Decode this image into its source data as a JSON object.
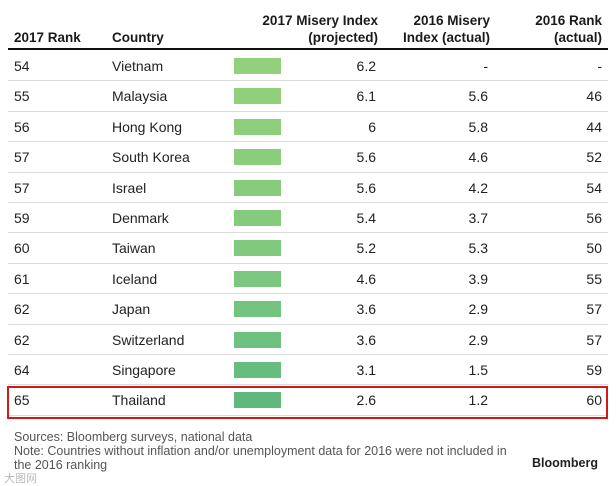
{
  "header": {
    "rank_2017": "2017 Rank",
    "country": "Country",
    "index_2017_line1": "2017 Misery Index",
    "index_2017_line2": "(projected)",
    "index_2016_line1": "2016 Misery",
    "index_2016_line2": "Index (actual)",
    "rank_2016_line1": "2016 Rank",
    "rank_2016_line2": "(actual)"
  },
  "colors": {
    "bar_light": "#8fce7a",
    "bar_dark": "#5cb86c",
    "highlight": "#d11b1b"
  },
  "rows": [
    {
      "rank": "54",
      "country": "Vietnam",
      "index_2017": "6.2",
      "index_2016": "-",
      "rank_2016": "-",
      "bar_color": "#93d07c"
    },
    {
      "rank": "55",
      "country": "Malaysia",
      "index_2017": "6.1",
      "index_2016": "5.6",
      "rank_2016": "46",
      "bar_color": "#90cf7c"
    },
    {
      "rank": "56",
      "country": "Hong Kong",
      "index_2017": "6",
      "index_2016": "5.8",
      "rank_2016": "44",
      "bar_color": "#8dce7c"
    },
    {
      "rank": "57",
      "country": "South Korea",
      "index_2017": "5.6",
      "index_2016": "4.6",
      "rank_2016": "52",
      "bar_color": "#8acd7d"
    },
    {
      "rank": "57",
      "country": "Israel",
      "index_2017": "5.6",
      "index_2016": "4.2",
      "rank_2016": "54",
      "bar_color": "#87cc7d"
    },
    {
      "rank": "59",
      "country": "Denmark",
      "index_2017": "5.4",
      "index_2016": "3.7",
      "rank_2016": "56",
      "bar_color": "#84cb7e"
    },
    {
      "rank": "60",
      "country": "Taiwan",
      "index_2017": "5.2",
      "index_2016": "5.3",
      "rank_2016": "50",
      "bar_color": "#80c97e"
    },
    {
      "rank": "61",
      "country": "Iceland",
      "index_2017": "4.6",
      "index_2016": "3.9",
      "rank_2016": "55",
      "bar_color": "#7cc77f"
    },
    {
      "rank": "62",
      "country": "Japan",
      "index_2017": "3.6",
      "index_2016": "2.9",
      "rank_2016": "57",
      "bar_color": "#74c37f"
    },
    {
      "rank": "62",
      "country": "Switzerland",
      "index_2017": "3.6",
      "index_2016": "2.9",
      "rank_2016": "57",
      "bar_color": "#6fc17f"
    },
    {
      "rank": "64",
      "country": "Singapore",
      "index_2017": "3.1",
      "index_2016": "1.5",
      "rank_2016": "59",
      "bar_color": "#67bd7e"
    },
    {
      "rank": "65",
      "country": "Thailand",
      "index_2017": "2.6",
      "index_2016": "1.2",
      "rank_2016": "60",
      "bar_color": "#5fb97c"
    }
  ],
  "footer": {
    "sources": "Sources: Bloomberg surveys, national data",
    "note": "Note: Countries without inflation and/or unemployment data for 2016 were not included in the 2016 ranking",
    "brand": "Bloomberg",
    "watermark": "大图网"
  }
}
